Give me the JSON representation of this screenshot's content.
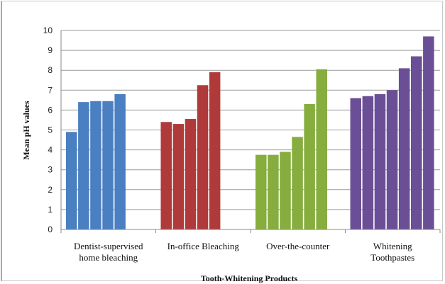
{
  "chart_data": {
    "type": "bar",
    "xlabel": "Tooth-Whitening Products",
    "ylabel": "Mean pH values",
    "ylim": [
      0,
      10
    ],
    "yticks": [
      "0",
      "1",
      "2",
      "3",
      "4",
      "5",
      "6",
      "7",
      "8",
      "9",
      "10"
    ],
    "grid": "horizontal",
    "legend": "none",
    "groups": [
      {
        "label_lines": [
          "Dentist-supervised",
          "home bleaching"
        ],
        "color": "#4a7fc1",
        "values": [
          4.9,
          6.4,
          6.45,
          6.45,
          6.8
        ]
      },
      {
        "label_lines": [
          "In-office Bleaching"
        ],
        "color": "#b03a3a",
        "values": [
          5.4,
          5.3,
          5.55,
          7.25,
          7.9
        ]
      },
      {
        "label_lines": [
          "Over-the-counter"
        ],
        "color": "#86ad3e",
        "values": [
          3.75,
          3.75,
          3.9,
          4.65,
          6.3,
          8.05
        ]
      },
      {
        "label_lines": [
          "Whitening",
          "Toothpastes"
        ],
        "color": "#6b4f96",
        "values": [
          6.6,
          6.7,
          6.8,
          7.0,
          8.1,
          8.7,
          9.7
        ]
      }
    ]
  }
}
